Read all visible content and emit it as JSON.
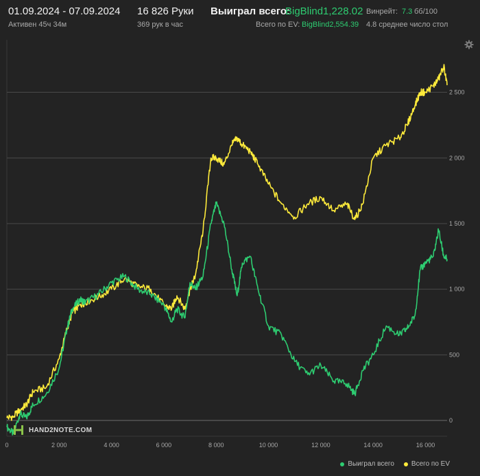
{
  "header": {
    "date_range": "01.09.2024 - 07.09.2024",
    "active_time": "Активен 45ч 34м",
    "hands_count": "16 826 Руки",
    "hands_per_hour": "369 рук в час",
    "won_total_label": "Выиграл всего:",
    "won_total_value": "BigBlind1,228.02",
    "ev_total_label": "Всего по EV:",
    "ev_total_value": "BigBlind2,554.39",
    "winrate_label": "Винрейт:",
    "winrate_value": "7.3",
    "winrate_unit": "бб/100",
    "avg_tables": "4.8 среднее число стол"
  },
  "logo": {
    "text": "HAND2NOTE.COM"
  },
  "legend": {
    "won_label": "Выиграл всего",
    "ev_label": "Всего по EV"
  },
  "colors": {
    "won": "#2ecc71",
    "ev": "#ffeb3b",
    "background": "#232323",
    "grid": "#5a5a5a"
  },
  "icons": {
    "settings": "gear-icon",
    "logo": "hand2note-logo-icon"
  },
  "chart_data": {
    "type": "line",
    "xlim": [
      0,
      16826
    ],
    "ylim": [
      -120,
      2900
    ],
    "x_ticks": [
      0,
      2000,
      4000,
      6000,
      8000,
      10000,
      12000,
      14000,
      16000
    ],
    "x_tick_labels": [
      "0",
      "2 000",
      "4 000",
      "6 000",
      "8 000",
      "10 000",
      "12 000",
      "14 000",
      "16 000"
    ],
    "y_ticks": [
      0,
      500,
      1000,
      1500,
      2000,
      2500
    ],
    "y_tick_labels": [
      "0",
      "500",
      "1 000",
      "1 500",
      "2 000",
      "2 500"
    ],
    "grid": true,
    "legend_position": "bottom-right",
    "series": [
      {
        "name": "Выиграл всего",
        "color": "#2ecc71",
        "x": [
          0,
          250,
          500,
          750,
          1000,
          1500,
          2000,
          2300,
          2500,
          2800,
          3000,
          3500,
          4000,
          4500,
          5000,
          5500,
          6000,
          6300,
          6500,
          6800,
          7000,
          7200,
          7500,
          7800,
          8000,
          8300,
          8600,
          8800,
          9000,
          9300,
          9600,
          10000,
          10500,
          11000,
          11500,
          12000,
          12500,
          13000,
          13300,
          13600,
          14000,
          14500,
          15000,
          15300,
          15600,
          15800,
          16000,
          16300,
          16500,
          16700,
          16826
        ],
        "y": [
          -50,
          -100,
          50,
          20,
          120,
          200,
          400,
          700,
          850,
          920,
          900,
          960,
          1050,
          1100,
          1000,
          960,
          880,
          750,
          850,
          780,
          1050,
          1000,
          1100,
          1500,
          1650,
          1500,
          1150,
          950,
          1200,
          1250,
          1000,
          720,
          650,
          450,
          350,
          420,
          300,
          280,
          200,
          380,
          500,
          720,
          650,
          700,
          800,
          1150,
          1200,
          1250,
          1450,
          1250,
          1228
        ]
      },
      {
        "name": "Всего по EV",
        "color": "#ffeb3b",
        "x": [
          0,
          250,
          500,
          750,
          1000,
          1500,
          2000,
          2300,
          2500,
          2800,
          3000,
          3500,
          4000,
          4500,
          5000,
          5500,
          6000,
          6300,
          6500,
          6800,
          7000,
          7200,
          7500,
          7800,
          8000,
          8300,
          8600,
          8800,
          9000,
          9300,
          9600,
          10000,
          10500,
          11000,
          11500,
          12000,
          12500,
          13000,
          13300,
          13600,
          14000,
          14500,
          15000,
          15300,
          15600,
          15800,
          16000,
          16300,
          16500,
          16700,
          16826
        ],
        "y": [
          20,
          30,
          80,
          120,
          220,
          250,
          470,
          700,
          820,
          880,
          900,
          940,
          1000,
          1080,
          1020,
          1000,
          880,
          850,
          950,
          850,
          1000,
          1100,
          1450,
          2000,
          2000,
          1950,
          2100,
          2150,
          2100,
          2050,
          1950,
          1800,
          1650,
          1550,
          1650,
          1700,
          1600,
          1650,
          1530,
          1650,
          2000,
          2100,
          2150,
          2250,
          2400,
          2500,
          2500,
          2550,
          2600,
          2700,
          2554
        ]
      }
    ]
  }
}
